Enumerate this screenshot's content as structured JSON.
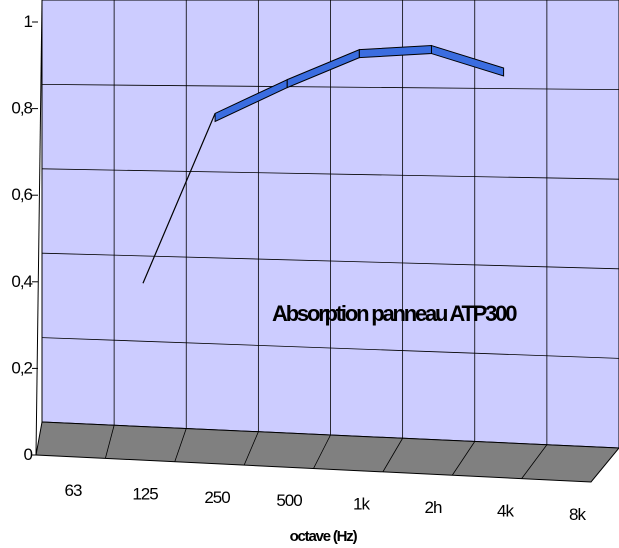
{
  "chart_data": {
    "type": "line",
    "categories": [
      "63",
      "125",
      "250",
      "500",
      "1k",
      "2h",
      "4k",
      "8k"
    ],
    "series": [
      {
        "values": [
          null,
          0.35,
          0.75,
          0.83,
          0.9,
          0.91,
          0.86,
          null
        ]
      }
    ],
    "ylim": [
      0,
      1
    ],
    "yticks": [
      "0",
      "0,2",
      "0,4",
      "0,6",
      "0,8",
      "1"
    ],
    "xlabel": "octave (Hz)",
    "ylabel": "",
    "annotation": "Absorption panneau ATP300",
    "grid": true,
    "series_color": "#3b6de0",
    "wall_color": "#ccccff",
    "floor_color": "#808080"
  }
}
